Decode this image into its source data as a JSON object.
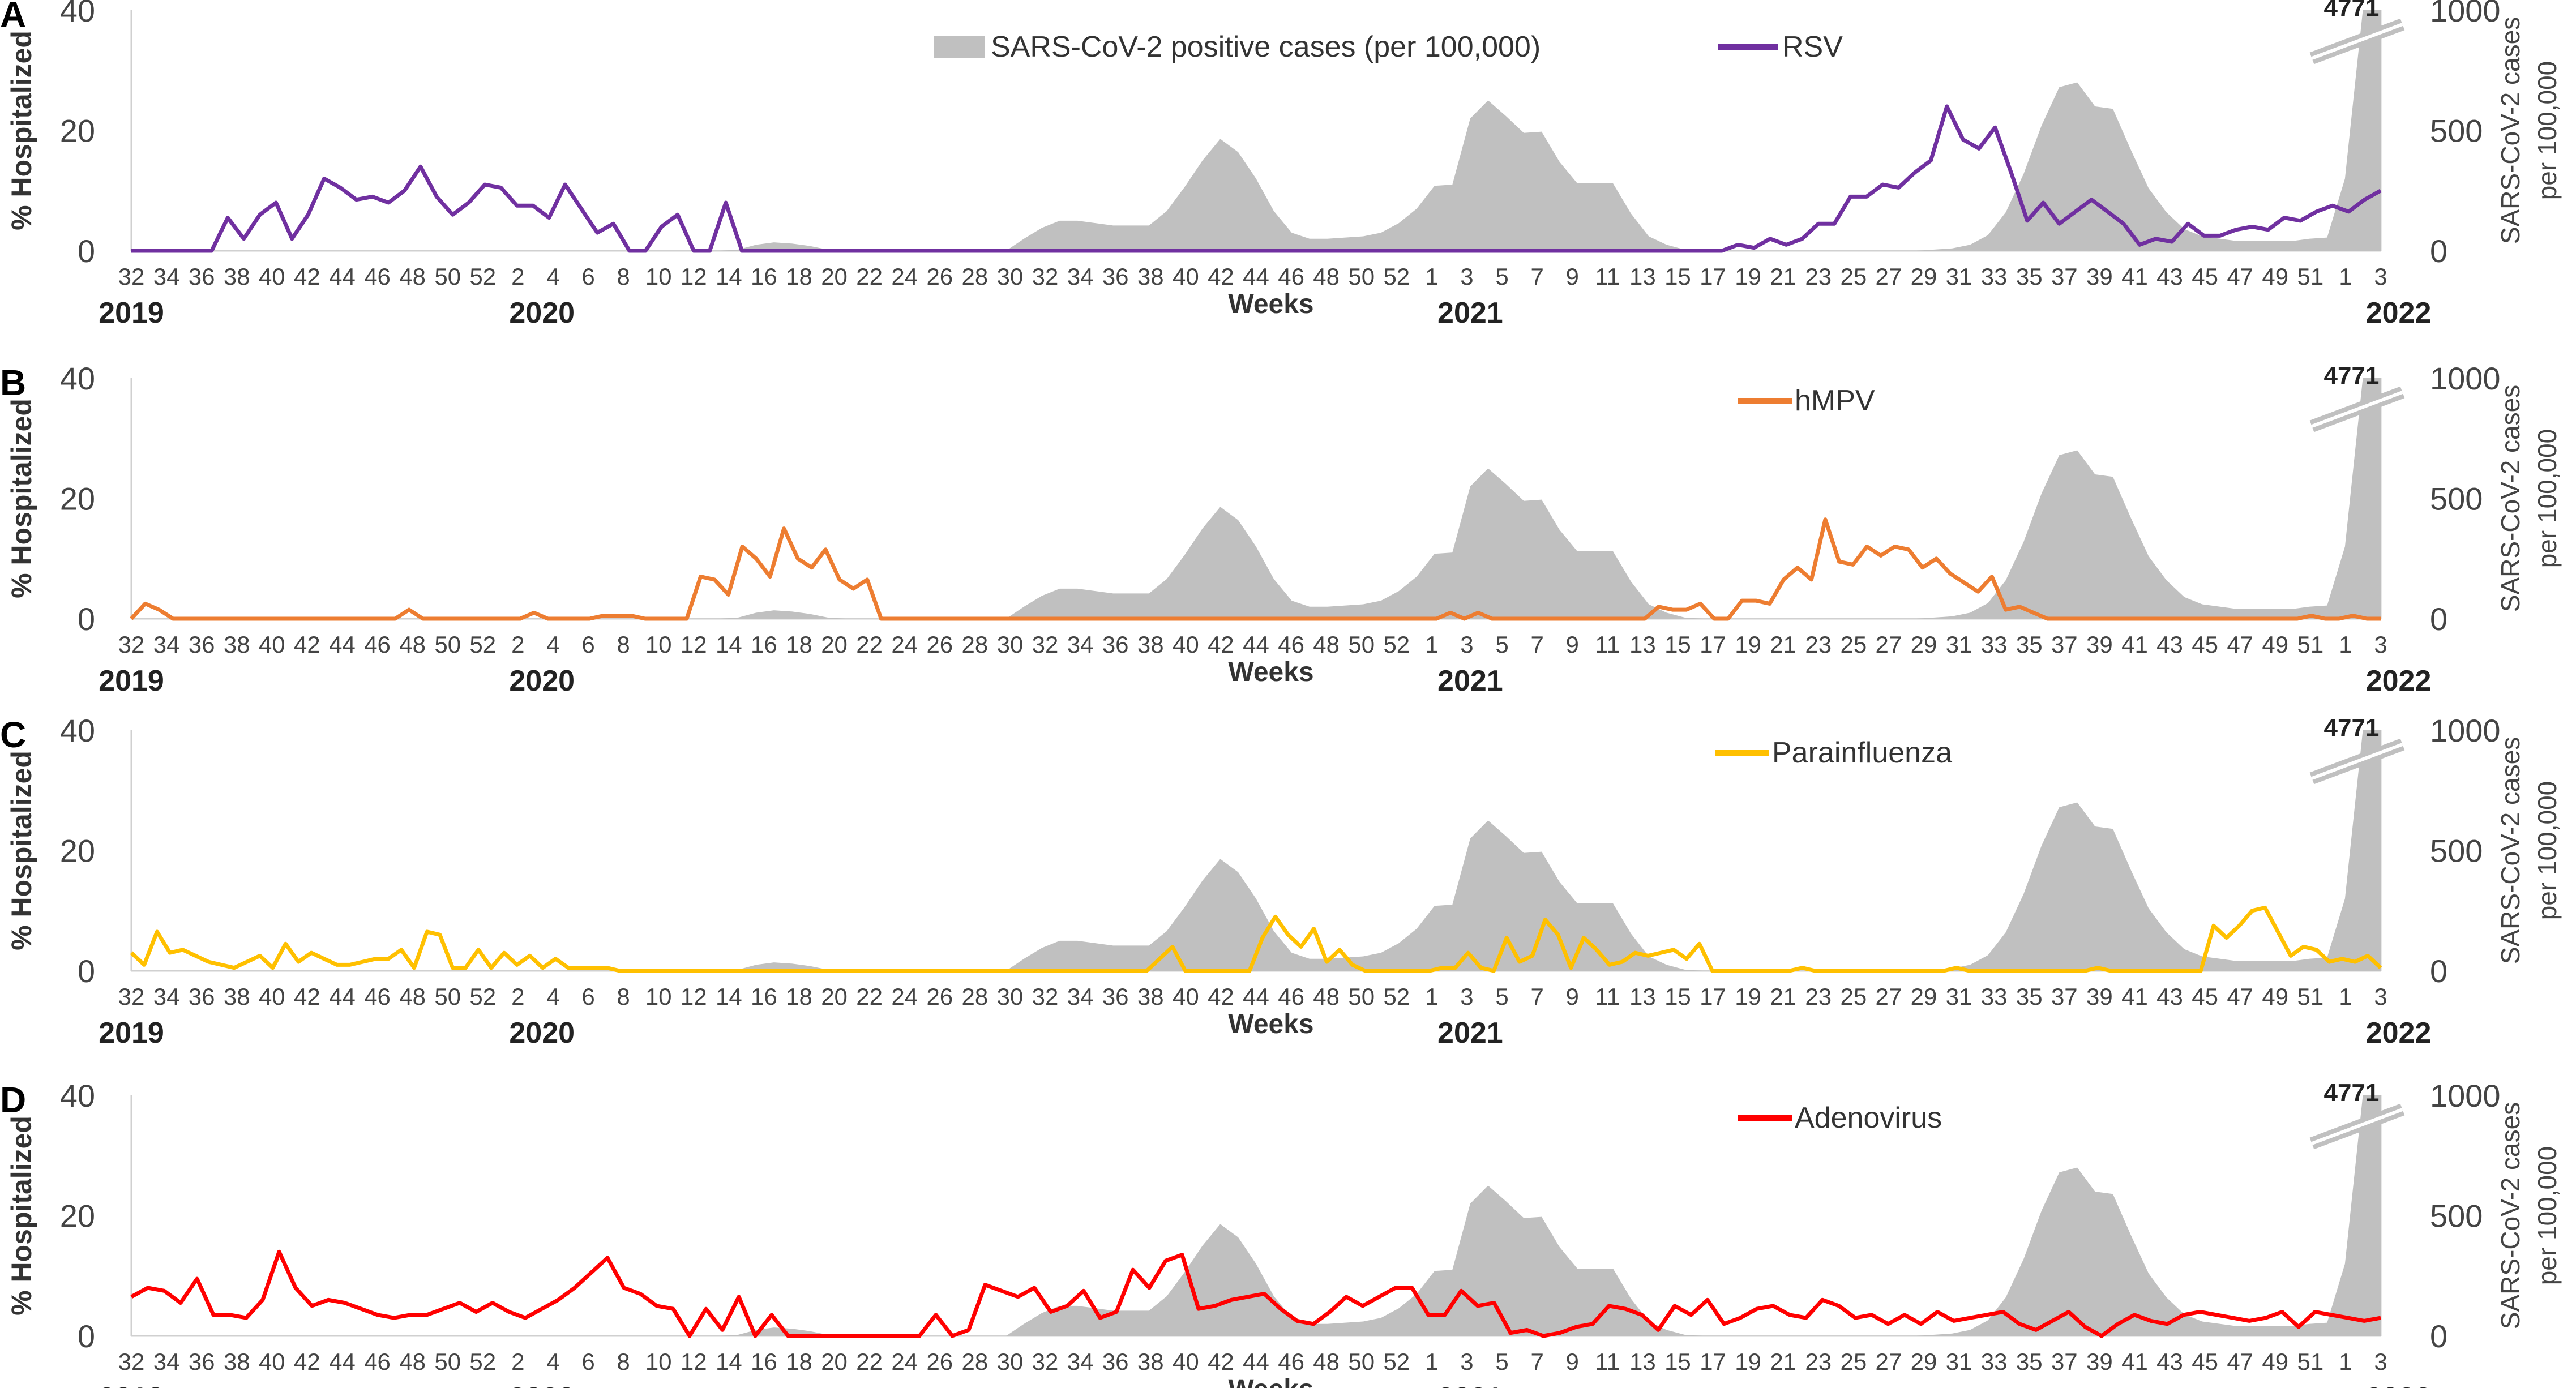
{
  "weeks_row": [
    "32",
    "34",
    "36",
    "38",
    "40",
    "42",
    "44",
    "46",
    "48",
    "50",
    "52",
    "2",
    "4",
    "6",
    "8",
    "10",
    "12",
    "14",
    "16",
    "18",
    "20",
    "22",
    "24",
    "26",
    "28",
    "30",
    "32",
    "34",
    "36",
    "38",
    "40",
    "42",
    "44",
    "46",
    "48",
    "50",
    "52",
    "1",
    "3",
    "5",
    "7",
    "9",
    "11",
    "13",
    "15",
    "17",
    "19",
    "21",
    "23",
    "25",
    "27",
    "29",
    "31",
    "33",
    "35",
    "37",
    "39",
    "41",
    "43",
    "45",
    "47",
    "49",
    "51",
    "1",
    "3"
  ],
  "weeks_row_alt": [
    "32",
    "34",
    "36",
    "38",
    "40",
    "42",
    "44",
    "46",
    "48",
    "50",
    "52",
    "2",
    "4",
    "6",
    "8",
    "10",
    "12",
    "14",
    "16",
    "18",
    "20",
    "22",
    "24",
    "26",
    "28",
    "30",
    "32",
    "34",
    "36",
    "38",
    "40",
    "42",
    "44",
    "46",
    "48",
    "50",
    "52",
    "1",
    "3",
    "5",
    "7",
    "9",
    "11",
    "13",
    "15",
    "17",
    "19",
    "21",
    "23",
    "25",
    "27",
    "29",
    "31",
    "33",
    "35",
    "37",
    "39",
    "41",
    "43",
    "45",
    "47",
    "49",
    "51",
    "1",
    "3"
  ],
  "years": [
    {
      "label": "2019",
      "week_index": 0
    },
    {
      "label": "2020",
      "week_index": 23
    },
    {
      "label": "2021",
      "week_index": 75
    },
    {
      "label": "2022",
      "week_index": 127
    }
  ],
  "xlabel": "Weeks",
  "ylabel_left": "% Hospitalized",
  "ylabel_right_1": "SARS-CoV-2 cases",
  "ylabel_right_2": "per 100,000",
  "y_left_ticks": [
    "0",
    "20",
    "40"
  ],
  "y_right_ticks": [
    "0",
    "500",
    "1000"
  ],
  "break_label": "4771",
  "sars_label": "SARS-CoV-2 positive cases (per 100,000)",
  "sars_color": "#c0c0c0",
  "chart_data": [
    {
      "type": "line",
      "panel": "A",
      "title": "",
      "legend": "RSV",
      "color": "#7030a0",
      "xlabel": "Weeks",
      "ylabel": "% Hospitalized",
      "ylim": [
        0,
        40
      ],
      "y2lim": [
        0,
        1000
      ],
      "values": [
        0,
        0,
        0,
        0,
        0,
        0,
        5.5,
        2,
        6,
        8,
        2,
        6,
        12,
        10.5,
        8.5,
        9,
        8,
        10,
        14,
        9,
        6,
        8,
        11,
        10.5,
        7.5,
        7.5,
        5.5,
        11,
        7,
        3,
        4.5,
        0,
        0,
        4,
        6,
        0,
        0,
        8,
        0,
        0,
        0,
        0,
        0,
        0,
        0,
        0,
        0,
        0,
        0,
        0,
        0,
        0,
        0,
        0,
        0,
        0,
        0,
        0,
        0,
        0,
        0,
        0,
        0,
        0,
        0,
        0,
        0,
        0,
        0,
        0,
        0,
        0,
        0,
        0,
        0,
        0,
        0,
        0,
        0,
        0,
        0,
        0,
        0,
        0,
        0,
        0,
        0,
        0,
        0,
        0,
        0,
        0,
        0,
        0,
        0,
        0,
        0,
        0,
        0,
        0,
        1,
        0.5,
        2,
        1,
        2,
        4.5,
        4.5,
        9,
        9,
        11,
        10.5,
        13,
        15,
        24,
        18.5,
        17,
        20.5,
        13,
        5,
        8,
        4.5,
        6.5,
        8.5,
        6.5,
        4.5,
        1,
        2,
        1.5,
        4.5,
        2.5,
        2.5,
        3.5,
        4,
        3.5,
        5.5,
        5,
        6.5,
        7.5,
        6.5,
        8.5,
        10
      ]
    },
    {
      "type": "line",
      "panel": "B",
      "title": "",
      "legend": "hMPV",
      "color": "#ed7d31",
      "xlabel": "Weeks",
      "ylabel": "% Hospitalized",
      "ylim": [
        0,
        40
      ],
      "y2lim": [
        0,
        1000
      ],
      "values": [
        0,
        2.5,
        1.5,
        0,
        0,
        0,
        0,
        0,
        0,
        0,
        0,
        0,
        0,
        0,
        0,
        0,
        0,
        0,
        0,
        0,
        1.5,
        0,
        0,
        0,
        0,
        0,
        0,
        0,
        0,
        1,
        0,
        0,
        0,
        0,
        0.5,
        0.5,
        0.5,
        0,
        0,
        0,
        0,
        7,
        6.5,
        4,
        12,
        10,
        7,
        15,
        10,
        8.5,
        11.5,
        6.5,
        5,
        6.5,
        0,
        0,
        0,
        0,
        0,
        0,
        0,
        0,
        0,
        0,
        0,
        0,
        0,
        0,
        0,
        0,
        0,
        0,
        0,
        0,
        0,
        0,
        0,
        0,
        0,
        0,
        0,
        0,
        0,
        0,
        0,
        0,
        0,
        0,
        0,
        0,
        0,
        0,
        0,
        0,
        0,
        1,
        0,
        1,
        0,
        0,
        0,
        0,
        0,
        0,
        0,
        0,
        0,
        0,
        0,
        0,
        2,
        1.5,
        1.5,
        2.5,
        0,
        0,
        3,
        3,
        2.5,
        6.5,
        8.5,
        6.5,
        16.5,
        9.5,
        9,
        12,
        10.5,
        12,
        11.5,
        8.5,
        10,
        7.5,
        6,
        4.5,
        7,
        1.5,
        2,
        1,
        0,
        0,
        0,
        0,
        0,
        0,
        0,
        0,
        0,
        0,
        0,
        0,
        0,
        0,
        0,
        0,
        0,
        0,
        0,
        0.5,
        0,
        0,
        0.5,
        0,
        0
      ]
    },
    {
      "type": "line",
      "panel": "C",
      "title": "",
      "legend": "Parainfluenza",
      "color": "#ffc000",
      "xlabel": "Weeks",
      "ylabel": "% Hospitalized",
      "ylim": [
        0,
        40
      ],
      "y2lim": [
        0,
        1000
      ],
      "values": [
        3,
        1,
        6.5,
        3,
        3.5,
        2.5,
        1.5,
        1,
        0.5,
        1.5,
        2.5,
        0.5,
        4.5,
        1.5,
        3,
        2,
        1,
        1,
        1.5,
        2,
        2,
        3.5,
        0.5,
        6.5,
        6,
        0.5,
        0.5,
        3.5,
        0.5,
        3,
        1,
        2.5,
        0.5,
        2,
        0.5,
        0.5,
        0.5,
        0.5,
        0,
        0,
        0,
        0,
        0,
        0,
        0,
        0,
        0,
        0,
        0,
        0,
        0,
        0,
        0,
        0,
        0,
        0,
        0,
        0,
        0,
        0,
        0,
        0,
        0,
        0,
        0,
        0,
        0,
        0,
        0,
        0,
        0,
        0,
        0,
        0,
        0,
        0,
        0,
        0,
        0,
        0,
        2,
        4,
        0,
        0,
        0,
        0,
        0,
        0,
        5.5,
        9,
        6,
        4,
        7,
        1.5,
        3.5,
        1,
        0,
        0,
        0,
        0,
        0,
        0,
        0.5,
        0.5,
        3,
        0.5,
        0,
        5.5,
        1.5,
        2.5,
        8.5,
        6,
        0.5,
        5.5,
        3.5,
        1,
        1.5,
        3,
        2.5,
        3,
        3.5,
        2,
        4.5,
        0,
        0,
        0,
        0,
        0,
        0,
        0,
        0.5,
        0,
        0,
        0,
        0,
        0,
        0,
        0,
        0,
        0,
        0,
        0,
        0.5,
        0,
        0,
        0,
        0,
        0,
        0,
        0,
        0,
        0,
        0,
        0.5,
        0,
        0,
        0,
        0,
        0,
        0,
        0,
        0,
        7.5,
        5.5,
        7.5,
        10,
        10.5,
        6.5,
        2.5,
        4,
        3.5,
        1.5,
        2,
        1.5,
        2.5,
        0.5
      ]
    },
    {
      "type": "line",
      "panel": "D",
      "title": "",
      "legend": "Adenovirus",
      "color": "#ff0000",
      "xlabel": "Weeks",
      "ylabel": "% Hospitalized",
      "ylim": [
        0,
        40
      ],
      "y2lim": [
        0,
        1000
      ],
      "values": [
        6.5,
        8,
        7.5,
        5.5,
        9.5,
        3.5,
        3.5,
        3,
        6,
        14,
        8,
        5,
        6,
        5.5,
        4.5,
        3.5,
        3,
        3.5,
        3.5,
        4.5,
        5.5,
        4,
        5.5,
        4,
        3,
        4.5,
        6,
        8,
        10.5,
        13,
        8,
        7,
        5,
        4.5,
        0,
        4.5,
        1,
        6.5,
        0,
        3.5,
        0,
        0,
        0,
        0,
        0,
        0,
        0,
        0,
        0,
        3.5,
        0,
        1,
        8.5,
        7.5,
        6.5,
        8,
        4,
        5,
        7.5,
        3,
        4,
        11,
        8,
        12.5,
        13.5,
        4.5,
        5,
        6,
        6.5,
        7,
        4.5,
        2.5,
        2,
        4,
        6.5,
        5,
        6.5,
        8,
        8,
        3.5,
        3.5,
        7.5,
        5,
        5.5,
        0.5,
        1,
        0,
        0.5,
        1.5,
        2,
        5,
        4.5,
        3.5,
        1,
        5,
        3.5,
        6,
        2,
        3,
        4.5,
        5,
        3.5,
        3,
        6,
        5,
        3,
        3.5,
        2,
        3.5,
        2,
        4,
        2.5,
        3,
        3.5,
        4,
        2,
        1,
        2.5,
        4,
        1.5,
        0,
        2,
        3.5,
        2.5,
        2,
        3.5,
        4,
        3.5,
        3,
        2.5,
        3,
        4,
        1.5,
        4,
        3.5,
        3,
        2.5,
        3
      ]
    }
  ],
  "sars_values": [
    0,
    0,
    0,
    0,
    0,
    0,
    0,
    0,
    0,
    0,
    0,
    0,
    0,
    0,
    0,
    0,
    0,
    0,
    0,
    0,
    0,
    0,
    0,
    0,
    0,
    0,
    0,
    0,
    0,
    0,
    0,
    0,
    0,
    0,
    5,
    25,
    35,
    30,
    20,
    5,
    0,
    0,
    0,
    0,
    0,
    0,
    0,
    0,
    0,
    0,
    50,
    95,
    125,
    125,
    115,
    105,
    105,
    105,
    165,
    265,
    375,
    465,
    410,
    300,
    165,
    75,
    50,
    50,
    55,
    60,
    75,
    115,
    175,
    270,
    275,
    550,
    625,
    560,
    490,
    495,
    370,
    280,
    280,
    280,
    155,
    60,
    25,
    5,
    0,
    0,
    0,
    0,
    0,
    0,
    0,
    0,
    0,
    0,
    0,
    0,
    0,
    5,
    10,
    25,
    65,
    160,
    320,
    520,
    680,
    700,
    600,
    590,
    420,
    260,
    160,
    90,
    60,
    50,
    40,
    40,
    40,
    40,
    50,
    55,
    300,
    4771,
    4771
  ],
  "panels": [
    {
      "id": "A",
      "legend_show_sars": true,
      "right_label_multiline": true
    },
    {
      "id": "B",
      "legend_show_sars": false
    },
    {
      "id": "C",
      "legend_show_sars": false
    },
    {
      "id": "D",
      "legend_show_sars": false
    }
  ]
}
